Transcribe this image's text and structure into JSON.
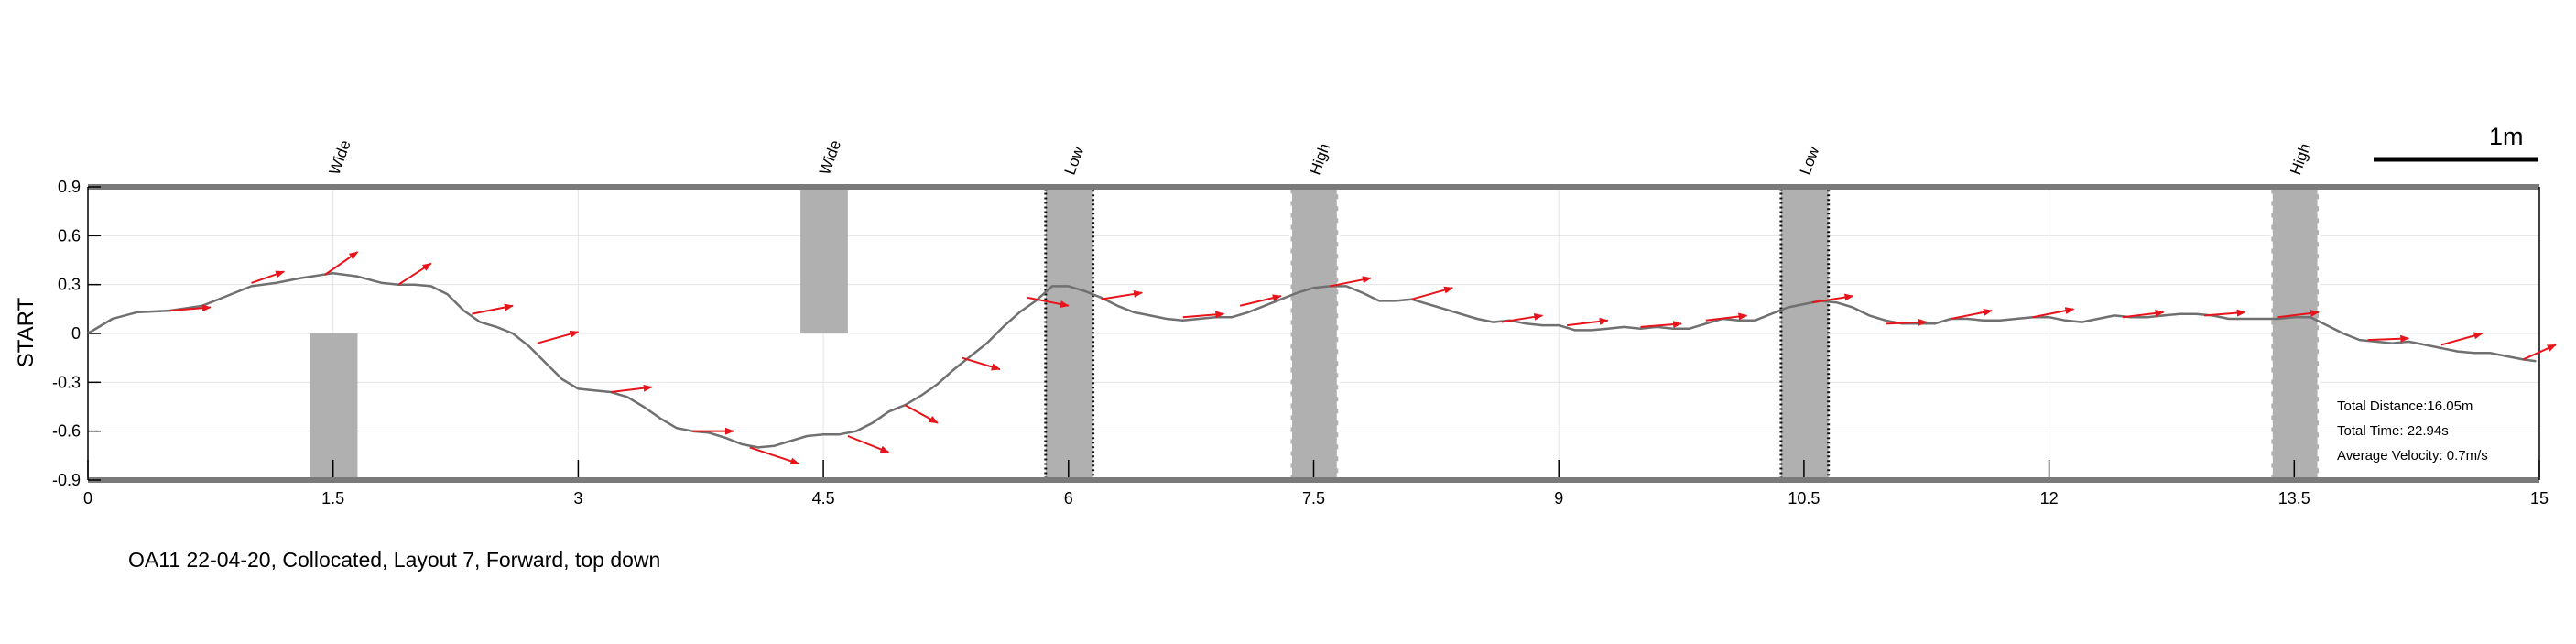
{
  "chart_data": {
    "type": "line",
    "title": "",
    "xlabel": "",
    "ylabel": "START",
    "xlim": [
      0,
      15
    ],
    "ylim": [
      -0.9,
      0.9
    ],
    "x_ticks": [
      0,
      1.5,
      3,
      4.5,
      6,
      7.5,
      9,
      10.5,
      12,
      13.5,
      15
    ],
    "x_tick_labels": [
      "0",
      "1.5",
      "3",
      "4.5",
      "6",
      "7.5",
      "9",
      "10.5",
      "12",
      "13.5",
      "15"
    ],
    "y_ticks": [
      0.9,
      0.6,
      0.3,
      0,
      -0.3,
      -0.6,
      -0.9
    ],
    "y_tick_labels": [
      "0.9",
      "0.6",
      "0.3",
      "0",
      "-0.3",
      "-0.6",
      "-0.9"
    ],
    "grid": true,
    "path_color": "#707070",
    "arrow_color": "#e8141b",
    "obstacle_color": "#b0b0b0",
    "path": {
      "x": [
        0,
        0.15,
        0.3,
        0.5,
        0.7,
        0.85,
        1.0,
        1.15,
        1.3,
        1.5,
        1.65,
        1.8,
        1.9,
        2.0,
        2.1,
        2.2,
        2.3,
        2.4,
        2.5,
        2.6,
        2.7,
        2.8,
        2.9,
        3.0,
        3.1,
        3.2,
        3.3,
        3.4,
        3.5,
        3.6,
        3.7,
        3.8,
        3.9,
        4.0,
        4.1,
        4.2,
        4.3,
        4.4,
        4.5,
        4.6,
        4.7,
        4.8,
        4.9,
        5.0,
        5.1,
        5.2,
        5.3,
        5.4,
        5.5,
        5.6,
        5.7,
        5.8,
        5.9,
        6.0,
        6.1,
        6.2,
        6.3,
        6.4,
        6.5,
        6.6,
        6.7,
        6.8,
        6.9,
        7.0,
        7.1,
        7.2,
        7.3,
        7.4,
        7.5,
        7.6,
        7.7,
        7.8,
        7.9,
        8.0,
        8.1,
        8.2,
        8.3,
        8.4,
        8.5,
        8.6,
        8.7,
        8.8,
        8.9,
        9.0,
        9.1,
        9.2,
        9.3,
        9.4,
        9.5,
        9.6,
        9.7,
        9.8,
        9.9,
        10.0,
        10.1,
        10.2,
        10.3,
        10.4,
        10.5,
        10.6,
        10.7,
        10.8,
        10.9,
        11.0,
        11.1,
        11.2,
        11.3,
        11.4,
        11.5,
        11.6,
        11.7,
        11.8,
        11.9,
        12.0,
        12.1,
        12.2,
        12.3,
        12.4,
        12.5,
        12.6,
        12.7,
        12.8,
        12.9,
        13.0,
        13.1,
        13.2,
        13.3,
        13.4,
        13.5,
        13.6,
        13.7,
        13.8,
        13.9,
        14.0,
        14.1,
        14.2,
        14.3,
        14.4,
        14.5,
        14.6,
        14.7,
        14.8,
        14.9,
        14.98
      ],
      "y": [
        0.0,
        0.09,
        0.13,
        0.14,
        0.17,
        0.23,
        0.29,
        0.31,
        0.34,
        0.37,
        0.35,
        0.31,
        0.3,
        0.3,
        0.29,
        0.24,
        0.14,
        0.07,
        0.04,
        0.0,
        -0.08,
        -0.18,
        -0.28,
        -0.34,
        -0.35,
        -0.36,
        -0.39,
        -0.45,
        -0.52,
        -0.58,
        -0.6,
        -0.61,
        -0.64,
        -0.68,
        -0.7,
        -0.69,
        -0.66,
        -0.63,
        -0.62,
        -0.62,
        -0.6,
        -0.55,
        -0.48,
        -0.44,
        -0.38,
        -0.31,
        -0.22,
        -0.14,
        -0.06,
        0.04,
        0.13,
        0.2,
        0.29,
        0.29,
        0.26,
        0.22,
        0.17,
        0.13,
        0.11,
        0.09,
        0.08,
        0.09,
        0.1,
        0.1,
        0.13,
        0.17,
        0.21,
        0.25,
        0.28,
        0.29,
        0.29,
        0.25,
        0.2,
        0.2,
        0.21,
        0.18,
        0.15,
        0.12,
        0.09,
        0.07,
        0.08,
        0.06,
        0.05,
        0.05,
        0.02,
        0.02,
        0.03,
        0.04,
        0.03,
        0.04,
        0.03,
        0.03,
        0.06,
        0.09,
        0.08,
        0.08,
        0.12,
        0.16,
        0.18,
        0.2,
        0.19,
        0.16,
        0.11,
        0.08,
        0.06,
        0.06,
        0.06,
        0.09,
        0.09,
        0.08,
        0.08,
        0.09,
        0.1,
        0.1,
        0.08,
        0.07,
        0.09,
        0.11,
        0.1,
        0.1,
        0.11,
        0.12,
        0.12,
        0.11,
        0.09,
        0.09,
        0.09,
        0.09,
        0.1,
        0.1,
        0.05,
        0.0,
        -0.04,
        -0.05,
        -0.06,
        -0.05,
        -0.07,
        -0.09,
        -0.11,
        -0.12,
        -0.12,
        -0.14,
        -0.16,
        -0.17
      ]
    },
    "arrows": [
      [
        0.5,
        0.14,
        0.75,
        0.16
      ],
      [
        1.0,
        0.31,
        1.2,
        0.38
      ],
      [
        1.45,
        0.36,
        1.65,
        0.5
      ],
      [
        1.9,
        0.3,
        2.1,
        0.43
      ],
      [
        2.35,
        0.12,
        2.6,
        0.17
      ],
      [
        2.75,
        -0.06,
        3.0,
        0.01
      ],
      [
        3.2,
        -0.36,
        3.45,
        -0.33
      ],
      [
        3.7,
        -0.6,
        3.95,
        -0.6
      ],
      [
        4.05,
        -0.7,
        4.35,
        -0.8
      ],
      [
        4.65,
        -0.63,
        4.9,
        -0.73
      ],
      [
        5.0,
        -0.44,
        5.2,
        -0.55
      ],
      [
        5.35,
        -0.15,
        5.58,
        -0.22
      ],
      [
        5.75,
        0.22,
        6.0,
        0.17
      ],
      [
        6.2,
        0.21,
        6.45,
        0.25
      ],
      [
        6.7,
        0.1,
        6.95,
        0.12
      ],
      [
        7.05,
        0.17,
        7.3,
        0.23
      ],
      [
        7.6,
        0.29,
        7.85,
        0.34
      ],
      [
        8.1,
        0.21,
        8.35,
        0.28
      ],
      [
        8.65,
        0.07,
        8.9,
        0.11
      ],
      [
        9.05,
        0.05,
        9.3,
        0.08
      ],
      [
        9.5,
        0.04,
        9.75,
        0.06
      ],
      [
        9.9,
        0.08,
        10.15,
        0.11
      ],
      [
        10.55,
        0.19,
        10.8,
        0.23
      ],
      [
        11.0,
        0.06,
        11.25,
        0.07
      ],
      [
        11.4,
        0.09,
        11.65,
        0.14
      ],
      [
        11.9,
        0.1,
        12.15,
        0.15
      ],
      [
        12.45,
        0.1,
        12.7,
        0.13
      ],
      [
        12.95,
        0.11,
        13.2,
        0.13
      ],
      [
        13.4,
        0.1,
        13.65,
        0.13
      ],
      [
        13.95,
        -0.04,
        14.2,
        -0.03
      ],
      [
        14.4,
        -0.07,
        14.65,
        0.0
      ],
      [
        14.9,
        -0.16,
        15.1,
        -0.07
      ]
    ],
    "obstacles": [
      {
        "label": "Wide",
        "x": [
          1.36,
          1.65
        ],
        "y": [
          -0.9,
          0
        ],
        "style": "plain",
        "label_x": 1.5
      },
      {
        "label": "Wide",
        "x": [
          4.36,
          4.65
        ],
        "y": [
          0,
          0.9
        ],
        "style": "plain",
        "label_x": 4.5
      },
      {
        "label": "Low",
        "x": [
          5.86,
          6.15
        ],
        "y": [
          -0.9,
          0.9
        ],
        "style": "dotted",
        "label_x": 6.0
      },
      {
        "label": "High",
        "x": [
          7.36,
          7.65
        ],
        "y": [
          -0.9,
          0.9
        ],
        "style": "dashed",
        "label_x": 7.5
      },
      {
        "label": "Low",
        "x": [
          10.36,
          10.65
        ],
        "y": [
          -0.9,
          0.9
        ],
        "style": "dotted",
        "label_x": 10.5
      },
      {
        "label": "High",
        "x": [
          13.36,
          13.65
        ],
        "y": [
          -0.9,
          0.9
        ],
        "style": "dashed",
        "label_x": 13.5
      }
    ],
    "scale_bar_label": "1m",
    "stats": {
      "total_distance": "Total Distance:16.05m",
      "total_time": "Total Time: 22.94s",
      "average_velocity": "Average Velocity: 0.7m/s"
    },
    "caption": "OA11 22-04-20, Collocated, Layout 7, Forward, top down"
  }
}
